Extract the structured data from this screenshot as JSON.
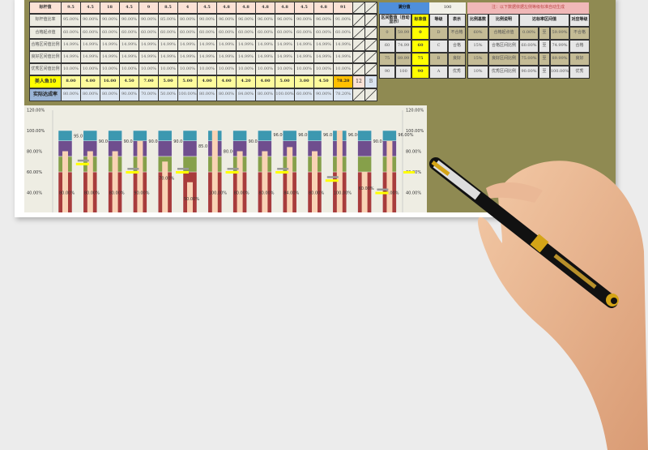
{
  "left_table": {
    "rows": [
      {
        "label": "标杆值",
        "kind": "hdr",
        "values": [
          "9.5",
          "4.5",
          "18",
          "4.5",
          "9",
          "8.5",
          "4",
          "4.5",
          "4.8",
          "4.8",
          "4.8",
          "4.8",
          "4.5",
          "4.8",
          "91"
        ]
      },
      {
        "label": "标杆值比率",
        "kind": "grey",
        "values": [
          "95.00%",
          "90.00%",
          "90.00%",
          "90.00%",
          "90.00%",
          "85.00%",
          "80.00%",
          "90.00%",
          "96.00%",
          "96.00%",
          "96.00%",
          "96.00%",
          "90.00%",
          "96.00%",
          "91.00%"
        ]
      },
      {
        "label": "合格起点值",
        "kind": "grey",
        "values": [
          "60.00%",
          "60.00%",
          "60.00%",
          "60.00%",
          "60.00%",
          "60.00%",
          "60.00%",
          "60.00%",
          "60.00%",
          "60.00%",
          "60.00%",
          "60.00%",
          "60.00%",
          "60.00%",
          "60.00%"
        ]
      },
      {
        "label": "合格区间值比例",
        "kind": "grey",
        "values": [
          "14.99%",
          "14.99%",
          "14.99%",
          "14.99%",
          "14.99%",
          "14.99%",
          "14.99%",
          "14.99%",
          "14.99%",
          "14.99%",
          "14.99%",
          "14.99%",
          "14.99%",
          "14.99%",
          "14.99%"
        ]
      },
      {
        "label": "良好区间值比例",
        "kind": "grey",
        "values": [
          "14.99%",
          "14.99%",
          "14.99%",
          "14.99%",
          "14.99%",
          "14.99%",
          "14.99%",
          "14.99%",
          "14.99%",
          "14.99%",
          "14.99%",
          "14.99%",
          "14.99%",
          "14.99%",
          "14.99%"
        ]
      },
      {
        "label": "优秀区间值比例",
        "kind": "grey",
        "values": [
          "10.00%",
          "10.00%",
          "10.00%",
          "10.00%",
          "10.00%",
          "10.00%",
          "10.00%",
          "10.00%",
          "10.00%",
          "10.00%",
          "10.00%",
          "10.00%",
          "10.00%",
          "10.00%",
          "10.00%"
        ]
      },
      {
        "label": "美人鱼10",
        "kind": "yel",
        "values": [
          "8.00",
          "4.00",
          "16.00",
          "4.50",
          "7.00",
          "5.00",
          "5.00",
          "4.00",
          "4.00",
          "4.20",
          "4.00",
          "5.00",
          "3.00",
          "4.50",
          "78.20"
        ],
        "extra": [
          "12",
          "B"
        ]
      },
      {
        "label": "实际达成率",
        "kind": "blu",
        "values": [
          "80.00%",
          "80.00%",
          "80.00%",
          "90.00%",
          "70.00%",
          "50.00%",
          "100.00%",
          "80.00%",
          "80.00%",
          "84.00%",
          "80.00%",
          "100.00%",
          "60.00%",
          "90.00%",
          "78.20%"
        ]
      }
    ]
  },
  "right_table": {
    "full_score_label": "满分值",
    "full_score_value": "100",
    "note": "注：以下数据依据左侧等级标准自动生成",
    "headers": [
      "区间数值（自动显示）",
      "标准值",
      "等级",
      "表示",
      "比例基数",
      "比例说明",
      "达标率区间值",
      "对应等级"
    ],
    "rows": [
      [
        "0",
        "59.99",
        "0",
        "D",
        "不合格",
        "60%",
        "合格起点值",
        "0.00%",
        "至",
        "59.99%",
        "不合格"
      ],
      [
        "60",
        "74.99",
        "60",
        "C",
        "合格",
        "15%",
        "合格区间比例",
        "60.00%",
        "至",
        "74.99%",
        "合格"
      ],
      [
        "75",
        "89.99",
        "75",
        "B",
        "良好",
        "15%",
        "良好区间比例",
        "75.00%",
        "至",
        "89.99%",
        "良好"
      ],
      [
        "90",
        "100",
        "90",
        "A",
        "优秀",
        "10%",
        "优秀区间比例",
        "90.00%",
        "至",
        "100.00%",
        "优秀"
      ]
    ]
  },
  "chart_data": {
    "type": "bar",
    "stacked_bands": [
      {
        "from": 0,
        "to": 60,
        "color": "#a83c3c"
      },
      {
        "from": 60,
        "to": 75,
        "color": "#86a04a"
      },
      {
        "from": 75,
        "to": 90,
        "color": "#6f4e8e"
      },
      {
        "from": 90,
        "to": 100,
        "color": "#3c98b0"
      }
    ],
    "benchmark_rate": [
      95,
      90,
      90,
      90,
      90,
      85,
      80,
      90,
      96,
      96,
      96,
      96,
      90,
      96
    ],
    "actual_rate": [
      80,
      80,
      80,
      90,
      70,
      50,
      100,
      80,
      80,
      84,
      80,
      100,
      60,
      90
    ],
    "actual_color": "#f9d3b5",
    "marker_color": "#ffff00",
    "markers": [
      null,
      68,
      null,
      60,
      null,
      60,
      null,
      60,
      null,
      60,
      null,
      52,
      null,
      40
    ],
    "yticks": [
      "120.00%",
      "100.00%",
      "80.00%",
      "60.00%",
      "40.00%"
    ],
    "ylim": [
      0,
      120
    ],
    "right_axis_extra": "60.00%"
  }
}
